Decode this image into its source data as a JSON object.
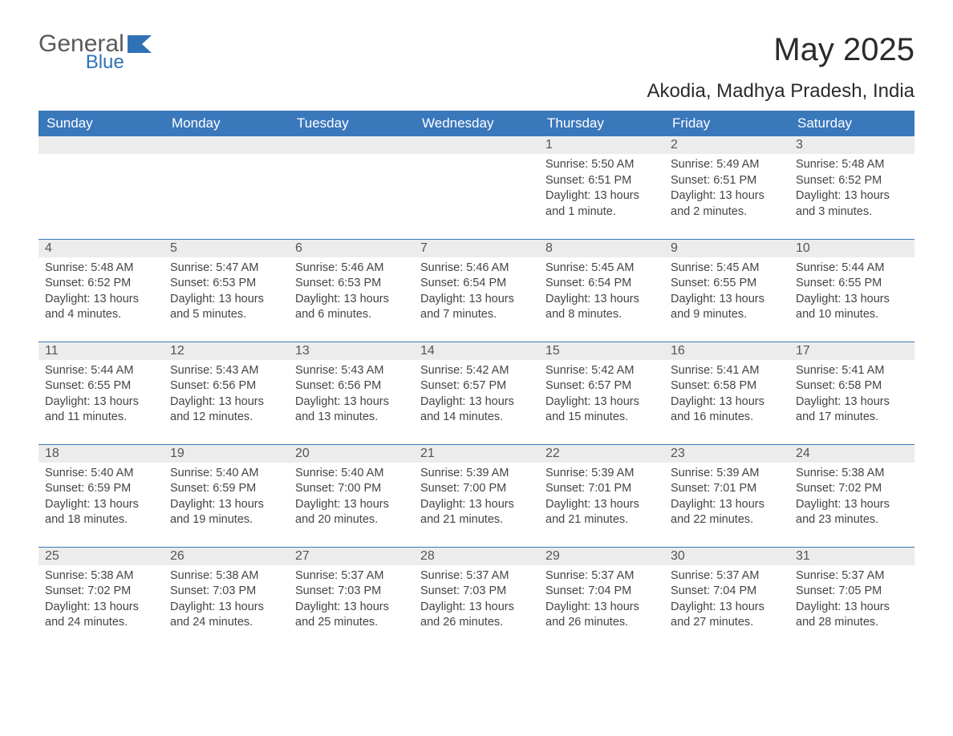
{
  "brand": {
    "word1": "General",
    "word2": "Blue",
    "accent_color": "#2f72b6"
  },
  "title": "May 2025",
  "location": "Akodia, Madhya Pradesh, India",
  "colors": {
    "header_bg": "#3a78bc",
    "header_text": "#ffffff",
    "daynum_bg": "#ececec",
    "body_text": "#444444",
    "page_bg": "#ffffff"
  },
  "day_headers": [
    "Sunday",
    "Monday",
    "Tuesday",
    "Wednesday",
    "Thursday",
    "Friday",
    "Saturday"
  ],
  "weeks": [
    [
      null,
      null,
      null,
      null,
      {
        "n": "1",
        "sunrise": "Sunrise: 5:50 AM",
        "sunset": "Sunset: 6:51 PM",
        "day1": "Daylight: 13 hours",
        "day2": "and 1 minute."
      },
      {
        "n": "2",
        "sunrise": "Sunrise: 5:49 AM",
        "sunset": "Sunset: 6:51 PM",
        "day1": "Daylight: 13 hours",
        "day2": "and 2 minutes."
      },
      {
        "n": "3",
        "sunrise": "Sunrise: 5:48 AM",
        "sunset": "Sunset: 6:52 PM",
        "day1": "Daylight: 13 hours",
        "day2": "and 3 minutes."
      }
    ],
    [
      {
        "n": "4",
        "sunrise": "Sunrise: 5:48 AM",
        "sunset": "Sunset: 6:52 PM",
        "day1": "Daylight: 13 hours",
        "day2": "and 4 minutes."
      },
      {
        "n": "5",
        "sunrise": "Sunrise: 5:47 AM",
        "sunset": "Sunset: 6:53 PM",
        "day1": "Daylight: 13 hours",
        "day2": "and 5 minutes."
      },
      {
        "n": "6",
        "sunrise": "Sunrise: 5:46 AM",
        "sunset": "Sunset: 6:53 PM",
        "day1": "Daylight: 13 hours",
        "day2": "and 6 minutes."
      },
      {
        "n": "7",
        "sunrise": "Sunrise: 5:46 AM",
        "sunset": "Sunset: 6:54 PM",
        "day1": "Daylight: 13 hours",
        "day2": "and 7 minutes."
      },
      {
        "n": "8",
        "sunrise": "Sunrise: 5:45 AM",
        "sunset": "Sunset: 6:54 PM",
        "day1": "Daylight: 13 hours",
        "day2": "and 8 minutes."
      },
      {
        "n": "9",
        "sunrise": "Sunrise: 5:45 AM",
        "sunset": "Sunset: 6:55 PM",
        "day1": "Daylight: 13 hours",
        "day2": "and 9 minutes."
      },
      {
        "n": "10",
        "sunrise": "Sunrise: 5:44 AM",
        "sunset": "Sunset: 6:55 PM",
        "day1": "Daylight: 13 hours",
        "day2": "and 10 minutes."
      }
    ],
    [
      {
        "n": "11",
        "sunrise": "Sunrise: 5:44 AM",
        "sunset": "Sunset: 6:55 PM",
        "day1": "Daylight: 13 hours",
        "day2": "and 11 minutes."
      },
      {
        "n": "12",
        "sunrise": "Sunrise: 5:43 AM",
        "sunset": "Sunset: 6:56 PM",
        "day1": "Daylight: 13 hours",
        "day2": "and 12 minutes."
      },
      {
        "n": "13",
        "sunrise": "Sunrise: 5:43 AM",
        "sunset": "Sunset: 6:56 PM",
        "day1": "Daylight: 13 hours",
        "day2": "and 13 minutes."
      },
      {
        "n": "14",
        "sunrise": "Sunrise: 5:42 AM",
        "sunset": "Sunset: 6:57 PM",
        "day1": "Daylight: 13 hours",
        "day2": "and 14 minutes."
      },
      {
        "n": "15",
        "sunrise": "Sunrise: 5:42 AM",
        "sunset": "Sunset: 6:57 PM",
        "day1": "Daylight: 13 hours",
        "day2": "and 15 minutes."
      },
      {
        "n": "16",
        "sunrise": "Sunrise: 5:41 AM",
        "sunset": "Sunset: 6:58 PM",
        "day1": "Daylight: 13 hours",
        "day2": "and 16 minutes."
      },
      {
        "n": "17",
        "sunrise": "Sunrise: 5:41 AM",
        "sunset": "Sunset: 6:58 PM",
        "day1": "Daylight: 13 hours",
        "day2": "and 17 minutes."
      }
    ],
    [
      {
        "n": "18",
        "sunrise": "Sunrise: 5:40 AM",
        "sunset": "Sunset: 6:59 PM",
        "day1": "Daylight: 13 hours",
        "day2": "and 18 minutes."
      },
      {
        "n": "19",
        "sunrise": "Sunrise: 5:40 AM",
        "sunset": "Sunset: 6:59 PM",
        "day1": "Daylight: 13 hours",
        "day2": "and 19 minutes."
      },
      {
        "n": "20",
        "sunrise": "Sunrise: 5:40 AM",
        "sunset": "Sunset: 7:00 PM",
        "day1": "Daylight: 13 hours",
        "day2": "and 20 minutes."
      },
      {
        "n": "21",
        "sunrise": "Sunrise: 5:39 AM",
        "sunset": "Sunset: 7:00 PM",
        "day1": "Daylight: 13 hours",
        "day2": "and 21 minutes."
      },
      {
        "n": "22",
        "sunrise": "Sunrise: 5:39 AM",
        "sunset": "Sunset: 7:01 PM",
        "day1": "Daylight: 13 hours",
        "day2": "and 21 minutes."
      },
      {
        "n": "23",
        "sunrise": "Sunrise: 5:39 AM",
        "sunset": "Sunset: 7:01 PM",
        "day1": "Daylight: 13 hours",
        "day2": "and 22 minutes."
      },
      {
        "n": "24",
        "sunrise": "Sunrise: 5:38 AM",
        "sunset": "Sunset: 7:02 PM",
        "day1": "Daylight: 13 hours",
        "day2": "and 23 minutes."
      }
    ],
    [
      {
        "n": "25",
        "sunrise": "Sunrise: 5:38 AM",
        "sunset": "Sunset: 7:02 PM",
        "day1": "Daylight: 13 hours",
        "day2": "and 24 minutes."
      },
      {
        "n": "26",
        "sunrise": "Sunrise: 5:38 AM",
        "sunset": "Sunset: 7:03 PM",
        "day1": "Daylight: 13 hours",
        "day2": "and 24 minutes."
      },
      {
        "n": "27",
        "sunrise": "Sunrise: 5:37 AM",
        "sunset": "Sunset: 7:03 PM",
        "day1": "Daylight: 13 hours",
        "day2": "and 25 minutes."
      },
      {
        "n": "28",
        "sunrise": "Sunrise: 5:37 AM",
        "sunset": "Sunset: 7:03 PM",
        "day1": "Daylight: 13 hours",
        "day2": "and 26 minutes."
      },
      {
        "n": "29",
        "sunrise": "Sunrise: 5:37 AM",
        "sunset": "Sunset: 7:04 PM",
        "day1": "Daylight: 13 hours",
        "day2": "and 26 minutes."
      },
      {
        "n": "30",
        "sunrise": "Sunrise: 5:37 AM",
        "sunset": "Sunset: 7:04 PM",
        "day1": "Daylight: 13 hours",
        "day2": "and 27 minutes."
      },
      {
        "n": "31",
        "sunrise": "Sunrise: 5:37 AM",
        "sunset": "Sunset: 7:05 PM",
        "day1": "Daylight: 13 hours",
        "day2": "and 28 minutes."
      }
    ]
  ]
}
